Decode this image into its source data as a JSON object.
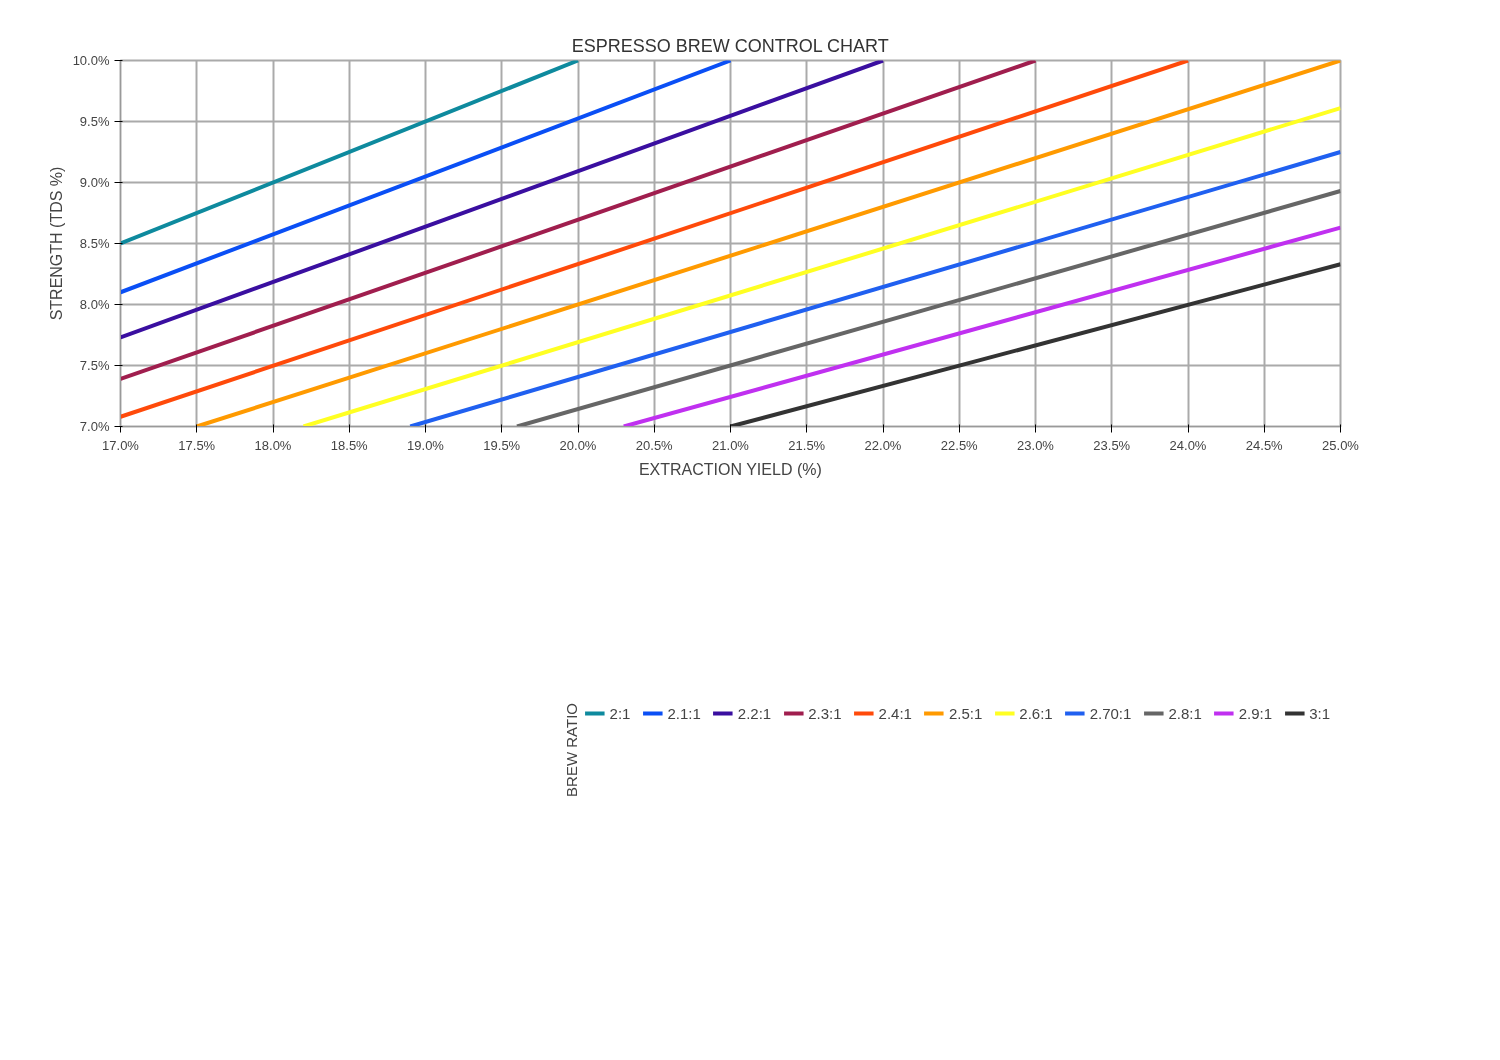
{
  "chart_data": {
    "type": "line",
    "title": "ESPRESSO BREW CONTROL CHART",
    "xlabel": "EXTRACTION YIELD (%)",
    "ylabel": "STRENGTH (TDS %)",
    "legend_title": "BREW RATIO",
    "xlim": [
      17.0,
      25.0
    ],
    "ylim": [
      7.0,
      10.0
    ],
    "xticks": [
      {
        "value": 17.0,
        "label": "17.0%"
      },
      {
        "value": 17.5,
        "label": "17.5%"
      },
      {
        "value": 18.0,
        "label": "18.0%"
      },
      {
        "value": 18.5,
        "label": "18.5%"
      },
      {
        "value": 19.0,
        "label": "19.0%"
      },
      {
        "value": 19.5,
        "label": "19.5%"
      },
      {
        "value": 20.0,
        "label": "20.0%"
      },
      {
        "value": 20.5,
        "label": "20.5%"
      },
      {
        "value": 21.0,
        "label": "21.0%"
      },
      {
        "value": 21.5,
        "label": "21.5%"
      },
      {
        "value": 22.0,
        "label": "22.0%"
      },
      {
        "value": 22.5,
        "label": "22.5%"
      },
      {
        "value": 23.0,
        "label": "23.0%"
      },
      {
        "value": 23.5,
        "label": "23.5%"
      },
      {
        "value": 24.0,
        "label": "24.0%"
      },
      {
        "value": 24.5,
        "label": "24.5%"
      },
      {
        "value": 25.0,
        "label": "25.0%"
      }
    ],
    "yticks": [
      {
        "value": 7.0,
        "label": "7.0%"
      },
      {
        "value": 7.5,
        "label": "7.5%"
      },
      {
        "value": 8.0,
        "label": "8.0%"
      },
      {
        "value": 8.5,
        "label": "8.5%"
      },
      {
        "value": 9.0,
        "label": "9.0%"
      },
      {
        "value": 9.5,
        "label": "9.5%"
      },
      {
        "value": 10.0,
        "label": "10.0%"
      }
    ],
    "grid": true,
    "legend": "bottom",
    "marker": "none",
    "line_style": "solid",
    "series": [
      {
        "name": "2:1",
        "color": "#0e8a9e",
        "x": [
          17.0,
          20.0
        ],
        "values": [
          8.5,
          10.0
        ]
      },
      {
        "name": "2.1:1",
        "color": "#0a4ff5",
        "x": [
          17.0,
          21.0
        ],
        "values": [
          8.1,
          10.0
        ]
      },
      {
        "name": "2.2:1",
        "color": "#3a0fa0",
        "x": [
          17.0,
          22.0
        ],
        "values": [
          7.73,
          10.0
        ]
      },
      {
        "name": "2.3:1",
        "color": "#a01e4e",
        "x": [
          17.0,
          23.0
        ],
        "values": [
          7.39,
          10.0
        ]
      },
      {
        "name": "2.4:1",
        "color": "#ff4a0a",
        "x": [
          17.0,
          24.0
        ],
        "values": [
          7.08,
          10.0
        ]
      },
      {
        "name": "2.5:1",
        "color": "#ff9a00",
        "x": [
          17.5,
          25.0
        ],
        "values": [
          7.0,
          10.0
        ]
      },
      {
        "name": "2.6:1",
        "color": "#ffff22",
        "x": [
          18.2,
          25.0
        ],
        "values": [
          7.0,
          9.61
        ]
      },
      {
        "name": "2.70:1",
        "color": "#2060f0",
        "x": [
          18.9,
          25.0
        ],
        "values": [
          7.0,
          9.25
        ]
      },
      {
        "name": "2.8:1",
        "color": "#666666",
        "x": [
          19.6,
          25.0
        ],
        "values": [
          7.0,
          8.93
        ]
      },
      {
        "name": "2.9:1",
        "color": "#c030f0",
        "x": [
          20.3,
          25.0
        ],
        "values": [
          7.0,
          8.63
        ]
      },
      {
        "name": "3:1",
        "color": "#333333",
        "x": [
          21.0,
          25.0
        ],
        "values": [
          7.0,
          8.33
        ]
      }
    ]
  }
}
